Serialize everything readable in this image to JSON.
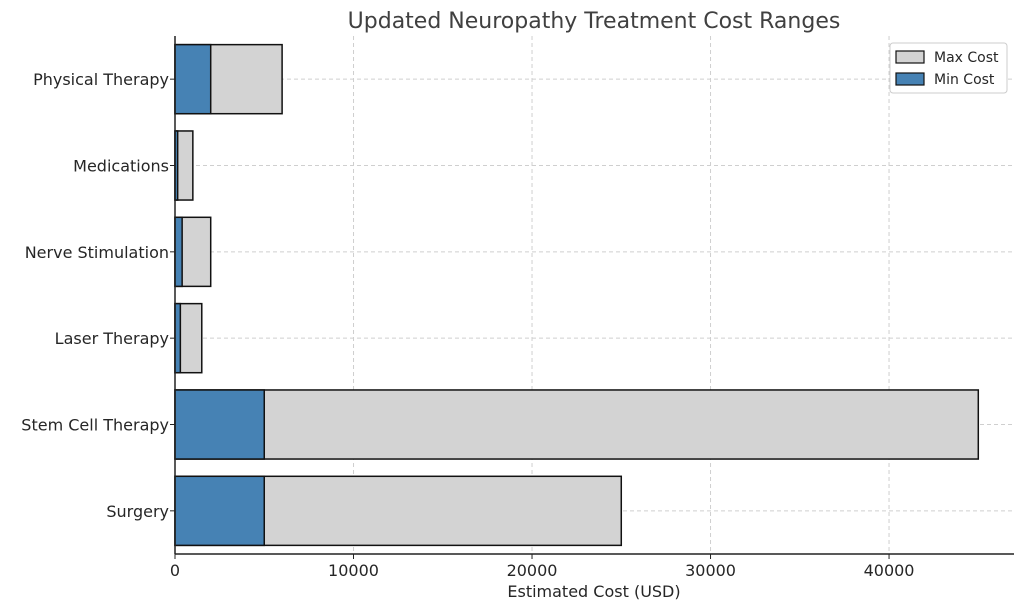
{
  "chart_data": {
    "type": "bar",
    "orientation": "horizontal",
    "title": "Updated Neuropathy Treatment Cost Ranges",
    "xlabel": "Estimated Cost (USD)",
    "ylabel": "",
    "xlim": [
      0,
      47000
    ],
    "xticks": [
      0,
      10000,
      20000,
      30000,
      40000
    ],
    "categories": [
      "Surgery",
      "Stem Cell Therapy",
      "Laser Therapy",
      "Nerve Stimulation",
      "Medications",
      "Physical Therapy"
    ],
    "series": [
      {
        "name": "Max Cost",
        "values": [
          25000,
          45000,
          1500,
          2000,
          1000,
          6000
        ],
        "color": "#d3d3d3"
      },
      {
        "name": "Min Cost",
        "values": [
          5000,
          5000,
          300,
          400,
          150,
          2000
        ],
        "color": "#4682b4"
      }
    ],
    "grid": true,
    "legend_position": "top-right"
  }
}
